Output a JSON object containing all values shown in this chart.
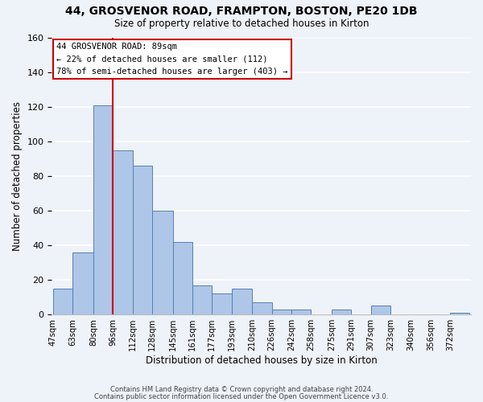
{
  "title": "44, GROSVENOR ROAD, FRAMPTON, BOSTON, PE20 1DB",
  "subtitle": "Size of property relative to detached houses in Kirton",
  "xlabel": "Distribution of detached houses by size in Kirton",
  "ylabel": "Number of detached properties",
  "bar_labels": [
    "47sqm",
    "63sqm",
    "80sqm",
    "96sqm",
    "112sqm",
    "128sqm",
    "145sqm",
    "161sqm",
    "177sqm",
    "193sqm",
    "210sqm",
    "226sqm",
    "242sqm",
    "258sqm",
    "275sqm",
    "291sqm",
    "307sqm",
    "323sqm",
    "340sqm",
    "356sqm",
    "372sqm"
  ],
  "bar_values": [
    15,
    36,
    121,
    95,
    86,
    60,
    42,
    17,
    12,
    15,
    7,
    3,
    3,
    0,
    3,
    0,
    5,
    0,
    0,
    0,
    1
  ],
  "bar_color": "#aec6e8",
  "bar_edge_color": "#5580b0",
  "ylim": [
    0,
    160
  ],
  "yticks": [
    0,
    20,
    40,
    60,
    80,
    100,
    120,
    140,
    160
  ],
  "annotation_title": "44 GROSVENOR ROAD: 89sqm",
  "annotation_line1": "← 22% of detached houses are smaller (112)",
  "annotation_line2": "78% of semi-detached houses are larger (403) →",
  "footer1": "Contains HM Land Registry data © Crown copyright and database right 2024.",
  "footer2": "Contains public sector information licensed under the Open Government Licence v3.0.",
  "bg_color": "#eef2f9",
  "grid_color": "#ffffff",
  "annotation_box_color": "#ffffff",
  "annotation_box_edge": "#cc0000",
  "vline_color": "#cc0000",
  "bin_starts": [
    47,
    63,
    80,
    96,
    112,
    128,
    145,
    161,
    177,
    193,
    210,
    226,
    242,
    258,
    275,
    291,
    307,
    323,
    340,
    356,
    372
  ],
  "vline_x": 96
}
